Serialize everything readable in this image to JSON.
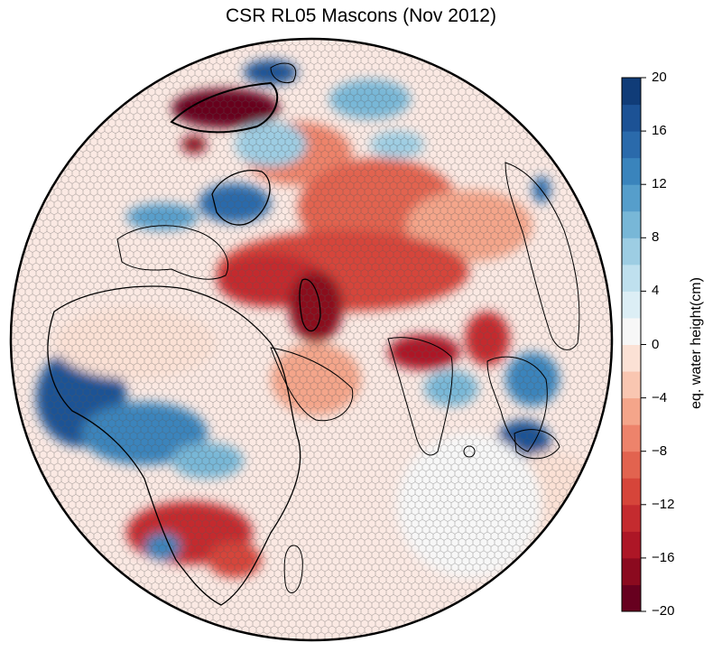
{
  "title": "CSR RL05 Mascons (Nov 2012)",
  "colorbar": {
    "label": "eq. water height(cm)",
    "min": -20,
    "max": 20,
    "step": 2,
    "tick_labels": [
      "20",
      "16",
      "12",
      "8",
      "4",
      "0",
      "−4",
      "−8",
      "−12",
      "−16",
      "−20"
    ],
    "tick_values": [
      20,
      16,
      12,
      8,
      4,
      0,
      -4,
      -8,
      -12,
      -16,
      -20
    ],
    "colors": {
      "-20": "#67001f",
      "-18": "#8b0a1f",
      "-16": "#ad1626",
      "-14": "#c42b2f",
      "-12": "#d6453a",
      "-10": "#e2634f",
      "-8": "#ed836b",
      "-6": "#f4a58a",
      "-4": "#f9c6b1",
      "-2": "#fbe1d5",
      "0": "#f7f7f7",
      "2": "#dceef5",
      "4": "#bfe0ee",
      "6": "#9dcde3",
      "8": "#78b7d7",
      "10": "#569ecb",
      "12": "#3a84bc",
      "14": "#2a6aab",
      "16": "#1c5295",
      "18": "#103c78"
    }
  },
  "map": {
    "projection": "orthographic",
    "coastline_color": "#000000",
    "cell_edge_color": "#555555",
    "background_value_cm": -1
  }
}
